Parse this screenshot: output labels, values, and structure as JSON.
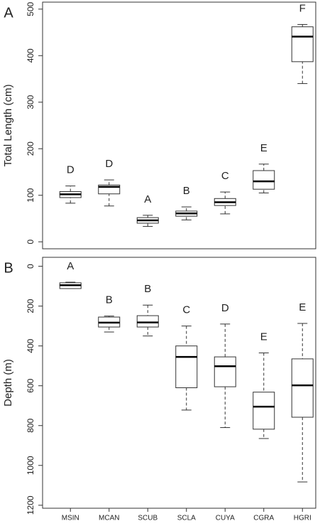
{
  "chart_data": [
    {
      "type": "boxplot",
      "panel_label": "A",
      "y_label": "Total Length (cm)",
      "ylim": [
        -15,
        515
      ],
      "yticks": [
        0,
        100,
        200,
        300,
        400,
        500
      ],
      "y_reversed": false,
      "min": [
        83,
        77,
        33,
        47,
        60,
        105,
        340
      ],
      "q1": [
        95,
        103,
        40,
        55,
        78,
        113,
        387
      ],
      "median": [
        102,
        118,
        46,
        61,
        85,
        130,
        441
      ],
      "q3": [
        108,
        122,
        52,
        66,
        93,
        153,
        462
      ],
      "max": [
        120,
        133,
        57,
        75,
        107,
        167,
        467
      ],
      "letters": [
        "D",
        "D",
        "A",
        "B",
        "C",
        "E",
        "F"
      ]
    },
    {
      "type": "boxplot",
      "panel_label": "B",
      "y_label": "Depth (m)",
      "ylim": [
        -45,
        1215
      ],
      "yticks": [
        0,
        200,
        400,
        600,
        800,
        1000,
        1200
      ],
      "y_reversed": true,
      "categories": [
        "MSIN",
        "MCAN",
        "SCUB",
        "SCLA",
        "CUYA",
        "CGRA",
        "HGRI"
      ],
      "min": [
        80,
        250,
        195,
        300,
        290,
        435,
        287
      ],
      "q1": [
        83,
        255,
        248,
        400,
        455,
        632,
        465
      ],
      "median": [
        95,
        283,
        282,
        455,
        502,
        705,
        598
      ],
      "q3": [
        112,
        305,
        305,
        610,
        605,
        818,
        758
      ],
      "max": [
        112,
        330,
        350,
        722,
        810,
        865,
        1083
      ],
      "letters": [
        "A",
        "B",
        "B",
        "C",
        "D",
        "E",
        "E"
      ]
    }
  ]
}
